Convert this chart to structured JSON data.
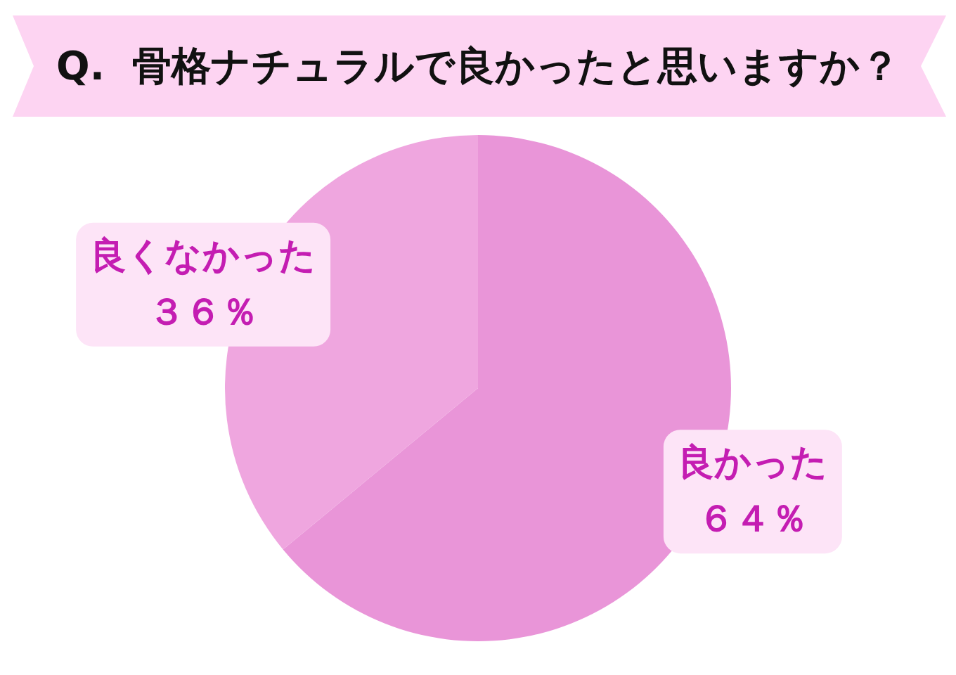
{
  "chart_data": {
    "type": "pie",
    "title": "Q.  骨格ナチュラルで良かったと思いますか？",
    "categories": [
      "良かった",
      "良くなかった"
    ],
    "values": [
      64,
      36
    ],
    "colors": [
      "#e995d8",
      "#efa6df"
    ],
    "value_labels": [
      "６４％",
      "３６％"
    ]
  }
}
